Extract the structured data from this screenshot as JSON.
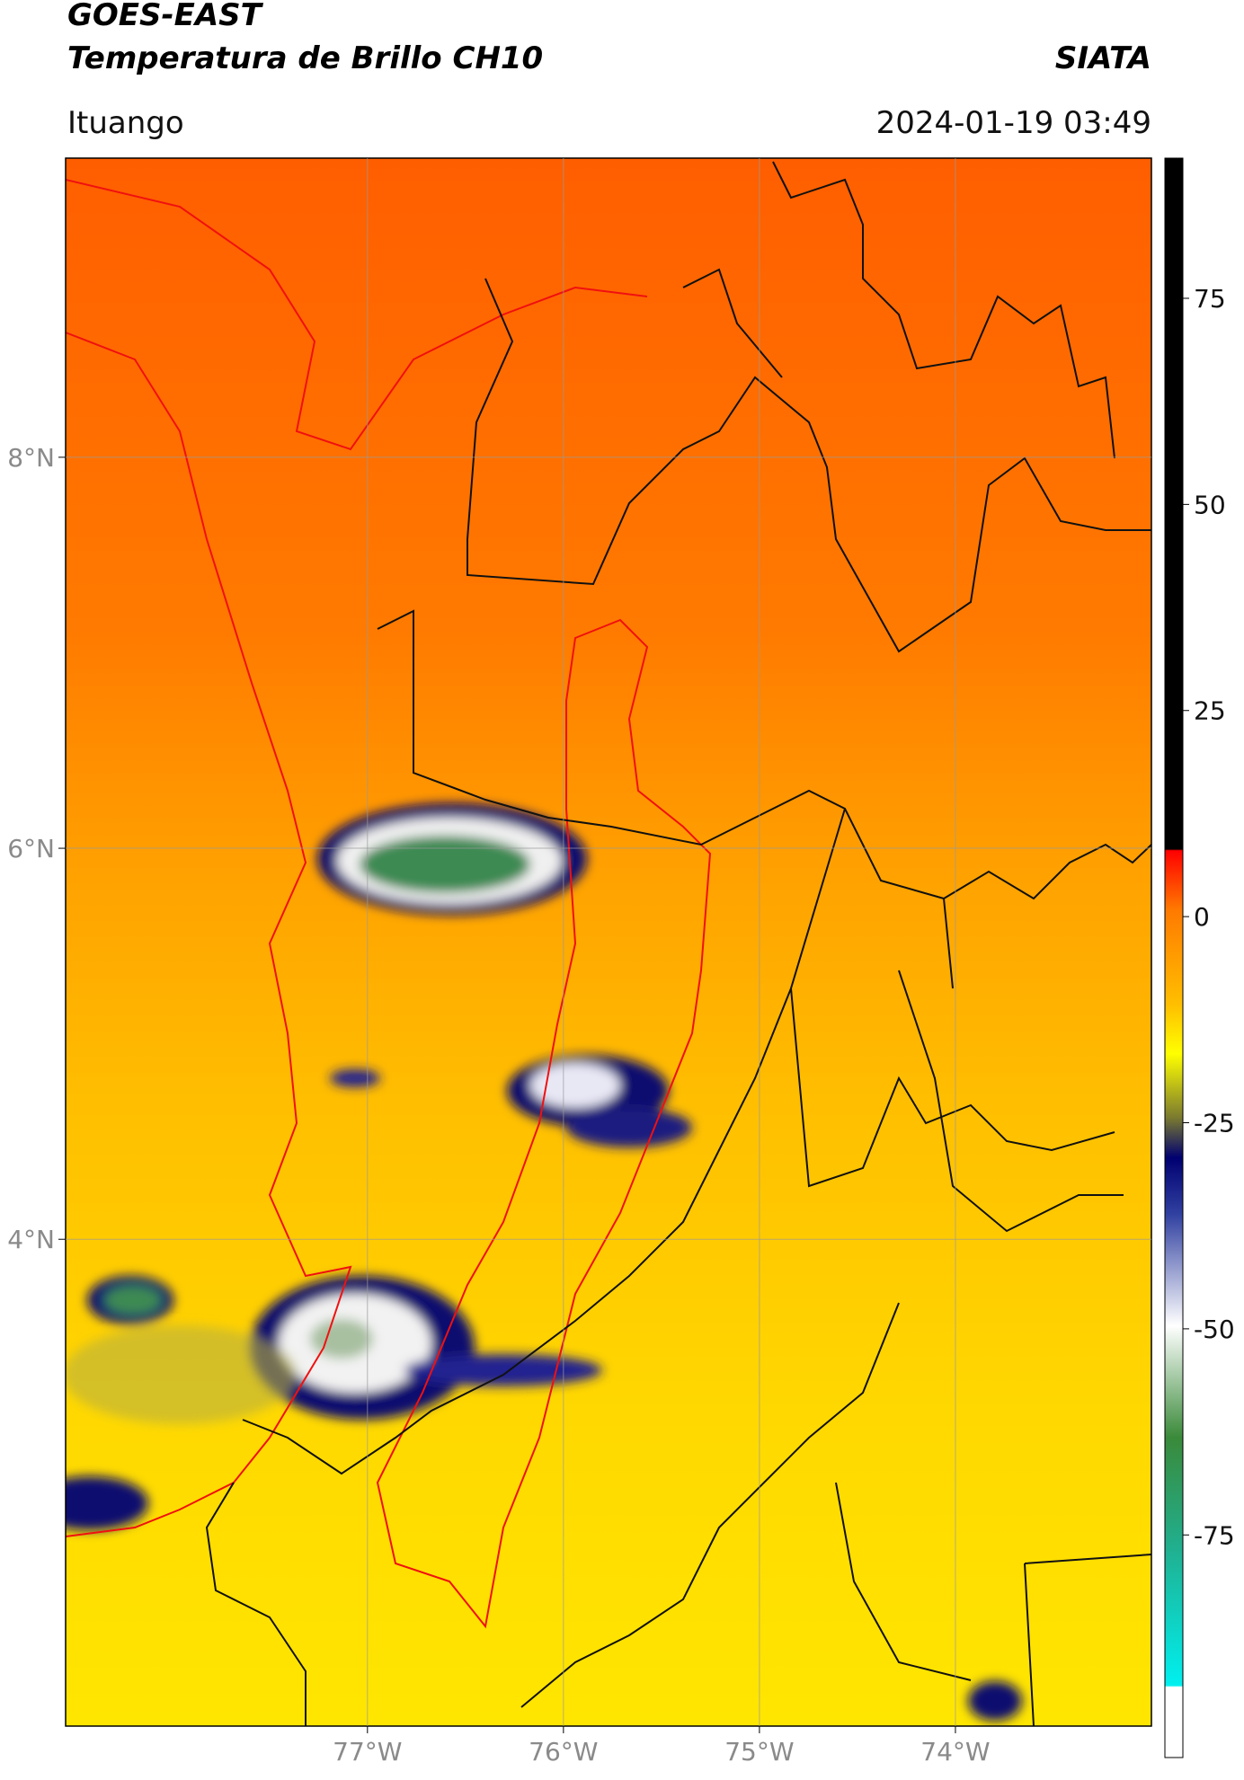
{
  "header": {
    "title": "GOES-EAST",
    "subtitle": "Temperatura de Brillo CH10",
    "source": "SIATA",
    "location": "Ituango",
    "datetime": "2024-01-19 03:49"
  },
  "map": {
    "xlim": [
      -78.54,
      -73.0
    ],
    "ylim": [
      1.51,
      9.53
    ],
    "xticks": [
      {
        "value": -77,
        "label": "77°W"
      },
      {
        "value": -76,
        "label": "76°W"
      },
      {
        "value": -75,
        "label": "75°W"
      },
      {
        "value": -74,
        "label": "74°W"
      }
    ],
    "yticks": [
      {
        "value": 8,
        "label": "8°N"
      },
      {
        "value": 6,
        "label": "6°N"
      },
      {
        "value": 4,
        "label": "4°N"
      }
    ],
    "grid": true
  },
  "colorbar": {
    "vlim": [
      -102,
      92
    ],
    "ticks": [
      75,
      50,
      25,
      0,
      -25,
      -50,
      -75
    ]
  }
}
